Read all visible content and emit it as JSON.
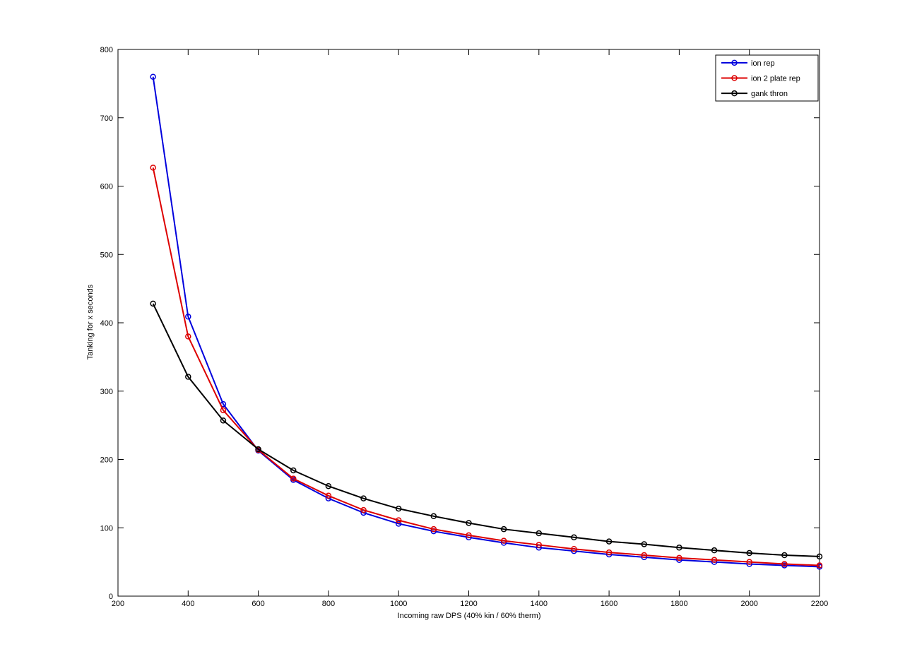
{
  "chart_data": {
    "type": "line",
    "title": "",
    "xlabel": "Incoming raw DPS (40% kin / 60% therm)",
    "ylabel": "Tanking for x seconds",
    "xlim": [
      200,
      2200
    ],
    "ylim": [
      0,
      800
    ],
    "xticks": [
      200,
      400,
      600,
      800,
      1000,
      1200,
      1400,
      1600,
      1800,
      2000,
      2200
    ],
    "yticks": [
      0,
      100,
      200,
      300,
      400,
      500,
      600,
      700,
      800
    ],
    "grid": false,
    "legend_position": "top-right",
    "background": "#ffffff",
    "axis_color": "#000000",
    "x": [
      300,
      400,
      500,
      600,
      700,
      800,
      900,
      1000,
      1100,
      1200,
      1300,
      1400,
      1500,
      1600,
      1700,
      1800,
      1900,
      2000,
      2100,
      2200
    ],
    "series": [
      {
        "name": "ion rep",
        "color": "#0000dd",
        "marker": "circle",
        "values": [
          760,
          409,
          281,
          213,
          170,
          143,
          122,
          106,
          95,
          86,
          78,
          71,
          66,
          61,
          57,
          53,
          50,
          47,
          45,
          43
        ]
      },
      {
        "name": "ion 2 plate rep",
        "color": "#dd0000",
        "marker": "circle",
        "values": [
          627,
          380,
          272,
          214,
          172,
          147,
          126,
          111,
          98,
          89,
          81,
          75,
          69,
          64,
          60,
          56,
          53,
          50,
          47,
          45
        ]
      },
      {
        "name": "gank thron",
        "color": "#000000",
        "marker": "circle",
        "values": [
          428,
          321,
          257,
          215,
          184,
          161,
          143,
          128,
          117,
          107,
          98,
          92,
          86,
          80,
          76,
          71,
          67,
          63,
          60,
          58
        ]
      }
    ]
  }
}
